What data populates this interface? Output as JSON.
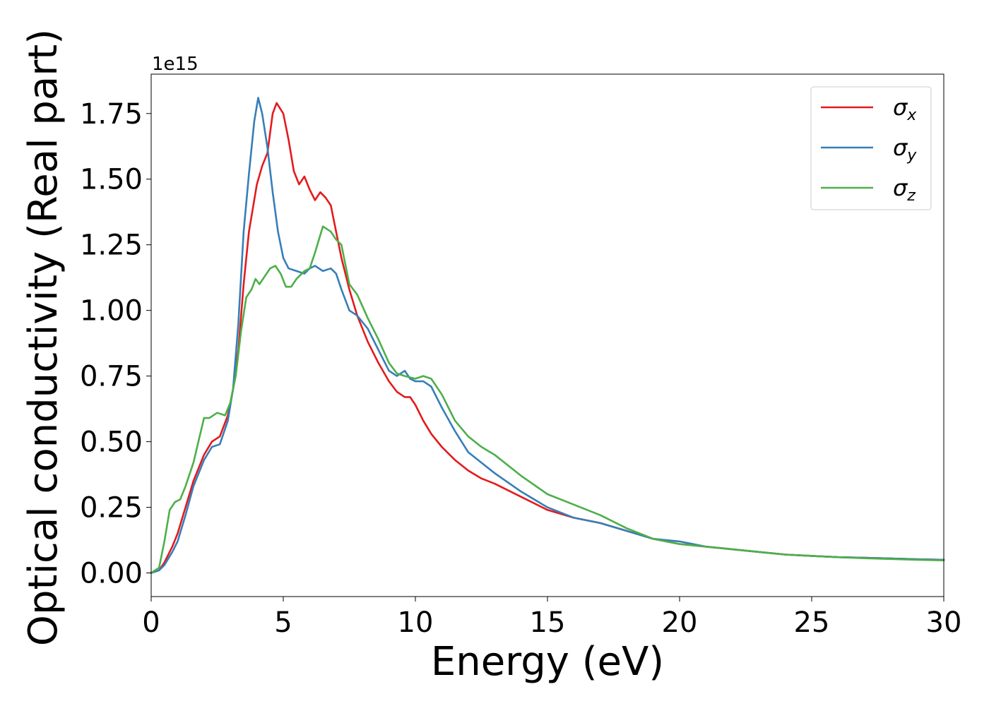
{
  "chart_data": {
    "type": "line",
    "title": "",
    "xlabel": "Energy (eV)",
    "ylabel": "Optical conductivity (Real part)",
    "y_offset_label": "1e15",
    "xlim": [
      0,
      30
    ],
    "ylim": [
      -0.09,
      1.9
    ],
    "xticks": [
      0,
      5,
      10,
      15,
      20,
      25,
      30
    ],
    "xtick_labels": [
      "0",
      "5",
      "10",
      "15",
      "20",
      "25",
      "30"
    ],
    "yticks": [
      0.0,
      0.25,
      0.5,
      0.75,
      1.0,
      1.25,
      1.5,
      1.75
    ],
    "ytick_labels": [
      "0.00",
      "0.25",
      "0.50",
      "0.75",
      "1.00",
      "1.25",
      "1.50",
      "1.75"
    ],
    "grid": false,
    "legend_position": "top-right",
    "series": [
      {
        "name": "σx",
        "sym": "σ",
        "sub": "x",
        "color": "#e41a1c",
        "x": [
          0,
          0.3,
          0.5,
          0.8,
          1.0,
          1.3,
          1.6,
          2.0,
          2.3,
          2.6,
          2.9,
          3.1,
          3.3,
          3.5,
          3.7,
          4.0,
          4.2,
          4.4,
          4.6,
          4.75,
          5.0,
          5.2,
          5.4,
          5.6,
          5.8,
          6.0,
          6.2,
          6.4,
          6.6,
          6.8,
          7.0,
          7.2,
          7.5,
          7.8,
          8.2,
          8.6,
          9.0,
          9.3,
          9.6,
          9.8,
          10.0,
          10.3,
          10.6,
          11.0,
          11.5,
          12.0,
          12.5,
          13.0,
          14.0,
          15.0,
          16.0,
          17.0,
          18.0,
          19.0,
          20.0,
          21.0,
          22.0,
          23.0,
          24.0,
          25.0,
          26.0,
          27.0,
          28.0,
          29.0,
          30.0
        ],
        "y": [
          0.0,
          0.01,
          0.04,
          0.1,
          0.15,
          0.25,
          0.35,
          0.45,
          0.5,
          0.52,
          0.6,
          0.7,
          0.85,
          1.1,
          1.3,
          1.48,
          1.55,
          1.6,
          1.75,
          1.79,
          1.75,
          1.65,
          1.53,
          1.48,
          1.51,
          1.46,
          1.42,
          1.45,
          1.43,
          1.4,
          1.3,
          1.2,
          1.08,
          0.98,
          0.88,
          0.8,
          0.73,
          0.69,
          0.67,
          0.67,
          0.64,
          0.58,
          0.53,
          0.48,
          0.43,
          0.39,
          0.36,
          0.34,
          0.29,
          0.24,
          0.21,
          0.19,
          0.16,
          0.13,
          0.11,
          0.1,
          0.09,
          0.08,
          0.07,
          0.065,
          0.06,
          0.058,
          0.055,
          0.052,
          0.05
        ]
      },
      {
        "name": "σy",
        "sym": "σ",
        "sub": "y",
        "color": "#377eb8",
        "x": [
          0,
          0.3,
          0.5,
          0.8,
          1.0,
          1.3,
          1.6,
          2.0,
          2.3,
          2.6,
          2.9,
          3.1,
          3.3,
          3.5,
          3.7,
          3.9,
          4.05,
          4.2,
          4.4,
          4.6,
          4.8,
          5.0,
          5.2,
          5.5,
          5.8,
          6.0,
          6.2,
          6.5,
          6.8,
          7.0,
          7.2,
          7.5,
          7.8,
          8.2,
          8.6,
          9.0,
          9.3,
          9.6,
          9.8,
          10.0,
          10.3,
          10.6,
          11.0,
          11.5,
          12.0,
          12.5,
          13.0,
          14.0,
          15.0,
          16.0,
          17.0,
          18.0,
          19.0,
          20.0,
          21.0,
          22.0,
          23.0,
          24.0,
          25.0,
          26.0,
          27.0,
          28.0,
          29.0,
          30.0
        ],
        "y": [
          0.0,
          0.01,
          0.03,
          0.08,
          0.12,
          0.22,
          0.33,
          0.43,
          0.48,
          0.49,
          0.58,
          0.7,
          0.95,
          1.3,
          1.52,
          1.72,
          1.81,
          1.75,
          1.62,
          1.45,
          1.3,
          1.2,
          1.16,
          1.15,
          1.14,
          1.16,
          1.17,
          1.15,
          1.16,
          1.14,
          1.08,
          1.0,
          0.98,
          0.93,
          0.85,
          0.77,
          0.75,
          0.77,
          0.74,
          0.73,
          0.73,
          0.71,
          0.63,
          0.54,
          0.46,
          0.42,
          0.38,
          0.31,
          0.25,
          0.21,
          0.19,
          0.16,
          0.13,
          0.12,
          0.1,
          0.09,
          0.08,
          0.07,
          0.065,
          0.06,
          0.058,
          0.055,
          0.052,
          0.05
        ]
      },
      {
        "name": "σz",
        "sym": "σ",
        "sub": "z",
        "color": "#4daf4a",
        "x": [
          0,
          0.3,
          0.5,
          0.7,
          0.9,
          1.1,
          1.3,
          1.6,
          2.0,
          2.2,
          2.5,
          2.8,
          3.0,
          3.2,
          3.4,
          3.6,
          3.8,
          3.95,
          4.1,
          4.3,
          4.5,
          4.7,
          4.9,
          5.1,
          5.3,
          5.5,
          5.8,
          6.0,
          6.2,
          6.5,
          6.8,
          7.0,
          7.2,
          7.5,
          7.8,
          8.2,
          8.6,
          9.0,
          9.3,
          9.6,
          10.0,
          10.3,
          10.6,
          11.0,
          11.5,
          12.0,
          12.5,
          13.0,
          14.0,
          15.0,
          16.0,
          17.0,
          18.0,
          19.0,
          20.0,
          21.0,
          22.0,
          23.0,
          24.0,
          25.0,
          26.0,
          27.0,
          28.0,
          29.0,
          30.0
        ],
        "y": [
          0.0,
          0.02,
          0.12,
          0.24,
          0.27,
          0.28,
          0.33,
          0.42,
          0.59,
          0.59,
          0.61,
          0.6,
          0.65,
          0.75,
          0.92,
          1.05,
          1.08,
          1.12,
          1.1,
          1.13,
          1.16,
          1.17,
          1.14,
          1.09,
          1.09,
          1.12,
          1.15,
          1.16,
          1.22,
          1.32,
          1.3,
          1.27,
          1.25,
          1.1,
          1.06,
          0.97,
          0.89,
          0.8,
          0.76,
          0.75,
          0.74,
          0.75,
          0.74,
          0.68,
          0.58,
          0.52,
          0.48,
          0.45,
          0.37,
          0.3,
          0.26,
          0.22,
          0.17,
          0.13,
          0.11,
          0.1,
          0.09,
          0.08,
          0.07,
          0.065,
          0.06,
          0.056,
          0.053,
          0.05,
          0.048
        ]
      }
    ]
  }
}
